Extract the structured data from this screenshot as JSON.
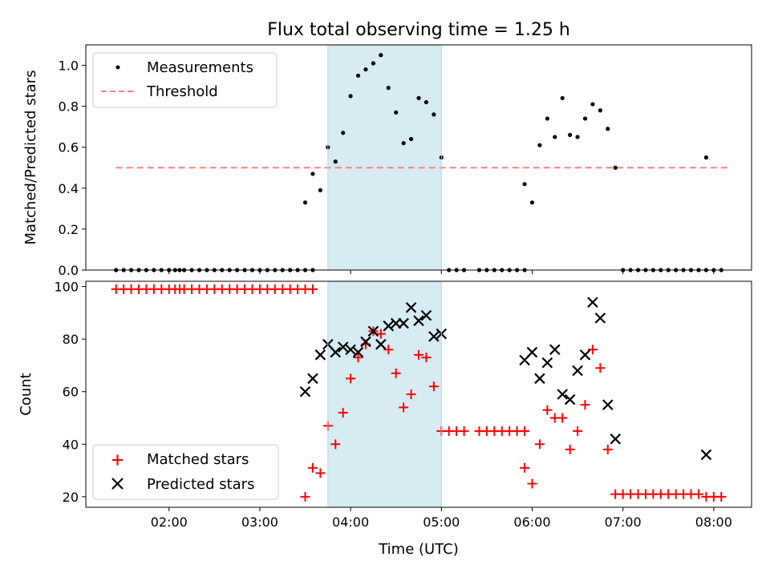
{
  "figure": {
    "title": "Flux total observing time = 1.25 h",
    "xlabel": "Time (UTC)"
  },
  "chart_data": [
    {
      "type": "scatter",
      "ylabel": "Matched/Predicted stars",
      "xlim": [
        "01:05",
        "08:25"
      ],
      "ylim": [
        0,
        1.1
      ],
      "yticks": [
        "0.0",
        "0.2",
        "0.4",
        "0.6",
        "0.8",
        "1.0"
      ],
      "xticks": [
        "02:00",
        "03:00",
        "04:00",
        "05:00",
        "06:00",
        "07:00",
        "08:00"
      ],
      "show_xtick_labels": false,
      "shaded_span": {
        "x": [
          "03:45",
          "05:00"
        ],
        "color": "#add8e6"
      },
      "legend_position": "upper left",
      "series": [
        {
          "name": "Measurements",
          "color": "#000000",
          "marker": "dot",
          "x": [
            "01:25",
            "01:30",
            "01:35",
            "01:40",
            "01:45",
            "01:50",
            "01:55",
            "02:00",
            "02:04",
            "02:07",
            "02:10",
            "02:15",
            "02:20",
            "02:25",
            "02:30",
            "02:35",
            "02:40",
            "02:45",
            "02:50",
            "02:55",
            "03:00",
            "03:05",
            "03:10",
            "03:15",
            "03:20",
            "03:25",
            "03:30",
            "03:35",
            "03:30",
            "03:35",
            "03:40",
            "03:45",
            "03:50",
            "03:55",
            "04:00",
            "04:05",
            "04:10",
            "04:15",
            "04:20",
            "04:25",
            "04:30",
            "04:35",
            "04:40",
            "04:45",
            "04:50",
            "04:55",
            "05:00",
            "05:05",
            "05:10",
            "05:15",
            "05:25",
            "05:30",
            "05:35",
            "05:40",
            "05:45",
            "05:50",
            "05:55",
            "05:55",
            "06:00",
            "06:05",
            "06:10",
            "06:15",
            "06:20",
            "06:25",
            "06:30",
            "06:35",
            "06:40",
            "06:45",
            "06:50",
            "06:55",
            "07:00",
            "07:05",
            "07:10",
            "07:15",
            "07:20",
            "07:25",
            "07:30",
            "07:35",
            "07:40",
            "07:45",
            "07:50",
            "07:55",
            "08:00",
            "08:05",
            "07:55"
          ],
          "y": [
            0,
            0,
            0,
            0,
            0,
            0,
            0,
            0,
            0,
            0,
            0,
            0,
            0,
            0,
            0,
            0,
            0,
            0,
            0,
            0,
            0,
            0,
            0,
            0,
            0,
            0,
            0,
            0,
            0.33,
            0.47,
            0.39,
            0.6,
            0.53,
            0.67,
            0.85,
            0.95,
            0.98,
            1.01,
            1.05,
            0.89,
            0.77,
            0.62,
            0.64,
            0.84,
            0.82,
            0.76,
            0.55,
            0,
            0,
            0,
            0,
            0,
            0,
            0,
            0,
            0,
            0,
            0.42,
            0.33,
            0.61,
            0.74,
            0.65,
            0.84,
            0.66,
            0.65,
            0.74,
            0.81,
            0.78,
            0.69,
            0.5,
            0,
            0,
            0,
            0,
            0,
            0,
            0,
            0,
            0,
            0,
            0,
            0,
            0,
            0,
            0.55
          ]
        },
        {
          "name": "Threshold",
          "color": "#ff7f7f",
          "style": "dashed",
          "x": [
            "01:25",
            "08:10"
          ],
          "y": [
            0.5,
            0.5
          ]
        }
      ]
    },
    {
      "type": "scatter",
      "ylabel": "Count",
      "xlim": [
        "01:05",
        "08:25"
      ],
      "ylim": [
        16,
        102
      ],
      "yticks": [
        "20",
        "40",
        "60",
        "80",
        "100"
      ],
      "xticks": [
        "02:00",
        "03:00",
        "04:00",
        "05:00",
        "06:00",
        "07:00",
        "08:00"
      ],
      "shaded_span": {
        "x": [
          "03:45",
          "05:00"
        ],
        "color": "#add8e6"
      },
      "legend_position": "lower left",
      "series": [
        {
          "name": "Matched stars",
          "color": "#ff0000",
          "marker": "plus",
          "x": [
            "01:25",
            "01:30",
            "01:35",
            "01:40",
            "01:45",
            "01:50",
            "01:55",
            "02:00",
            "02:04",
            "02:07",
            "02:10",
            "02:15",
            "02:20",
            "02:25",
            "02:30",
            "02:35",
            "02:40",
            "02:45",
            "02:50",
            "02:55",
            "03:00",
            "03:05",
            "03:10",
            "03:15",
            "03:20",
            "03:25",
            "03:30",
            "03:35",
            "03:30",
            "03:35",
            "03:40",
            "03:45",
            "03:50",
            "03:55",
            "04:00",
            "04:05",
            "04:10",
            "04:15",
            "04:20",
            "04:25",
            "04:30",
            "04:35",
            "04:40",
            "04:45",
            "04:50",
            "04:55",
            "05:00",
            "05:05",
            "05:10",
            "05:15",
            "05:25",
            "05:30",
            "05:35",
            "05:40",
            "05:45",
            "05:50",
            "05:55",
            "05:55",
            "06:00",
            "06:05",
            "06:10",
            "06:15",
            "06:20",
            "06:25",
            "06:30",
            "06:35",
            "06:40",
            "06:45",
            "06:50",
            "06:55",
            "07:00",
            "07:05",
            "07:10",
            "07:15",
            "07:20",
            "07:25",
            "07:30",
            "07:35",
            "07:40",
            "07:45",
            "07:50",
            "07:55",
            "08:00",
            "08:05"
          ],
          "y": [
            99,
            99,
            99,
            99,
            99,
            99,
            99,
            99,
            99,
            99,
            99,
            99,
            99,
            99,
            99,
            99,
            99,
            99,
            99,
            99,
            99,
            99,
            99,
            99,
            99,
            99,
            99,
            99,
            20,
            31,
            29,
            47,
            40,
            52,
            65,
            73,
            78,
            83,
            82,
            76,
            67,
            54,
            59,
            74,
            73,
            62,
            45,
            45,
            45,
            45,
            45,
            45,
            45,
            45,
            45,
            45,
            45,
            31,
            25,
            40,
            53,
            50,
            50,
            38,
            45,
            55,
            76,
            69,
            38,
            21,
            21,
            21,
            21,
            21,
            21,
            21,
            21,
            21,
            21,
            21,
            21,
            20,
            20,
            20
          ]
        },
        {
          "name": "Predicted stars",
          "color": "#000000",
          "marker": "x",
          "x": [
            "03:30",
            "03:35",
            "03:40",
            "03:45",
            "03:50",
            "03:55",
            "04:00",
            "04:05",
            "04:10",
            "04:15",
            "04:20",
            "04:25",
            "04:30",
            "04:35",
            "04:40",
            "04:45",
            "04:50",
            "04:55",
            "05:00",
            "05:55",
            "06:00",
            "06:05",
            "06:10",
            "06:15",
            "06:20",
            "06:25",
            "06:30",
            "06:35",
            "06:40",
            "06:45",
            "06:50",
            "06:55",
            "07:55"
          ],
          "y": [
            60,
            65,
            74,
            78,
            75,
            77,
            76,
            75,
            79,
            83,
            78,
            85,
            86,
            86,
            92,
            87,
            89,
            81,
            82,
            72,
            75,
            65,
            71,
            76,
            59,
            57,
            68,
            74,
            94,
            88,
            55,
            42,
            36
          ]
        }
      ]
    }
  ]
}
